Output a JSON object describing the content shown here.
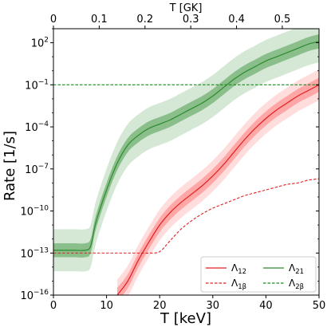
{
  "chart_data": {
    "type": "line",
    "xlabel": "T [keV]",
    "ylabel": "Rate [1/s]",
    "x2label": "T [GK]",
    "xlim": [
      0,
      50
    ],
    "ylim_log10": [
      -16,
      3
    ],
    "yscale": "log",
    "x_ticks": [
      0,
      10,
      20,
      30,
      40,
      50
    ],
    "x_tick_labels": [
      "0",
      "10",
      "20",
      "30",
      "40",
      "50"
    ],
    "x2_ticks_GK": [
      0,
      0.1,
      0.2,
      0.3,
      0.4,
      0.5
    ],
    "x2_tick_labels": [
      "0",
      "0.1",
      "0.2",
      "0.3",
      "0.4",
      "0.5"
    ],
    "y_ticks_log10": [
      2,
      -1,
      -4,
      -7,
      -10,
      -13,
      -16
    ],
    "y_tick_labels": [
      {
        "base": "10",
        "exp": "2"
      },
      {
        "base": "10",
        "exp": "−1"
      },
      {
        "base": "10",
        "exp": "−4"
      },
      {
        "base": "10",
        "exp": "−7"
      },
      {
        "base": "10",
        "exp": "−10"
      },
      {
        "base": "10",
        "exp": "−13"
      },
      {
        "base": "10",
        "exp": "−16"
      }
    ],
    "x": [
      0,
      2,
      4,
      6,
      7,
      8,
      10,
      12,
      14,
      16,
      18,
      20,
      22,
      24,
      26,
      28,
      30,
      32,
      34,
      36,
      38,
      40,
      42,
      44,
      46,
      48,
      50
    ],
    "series": [
      {
        "name": "Λ21",
        "legend_main": "Λ",
        "legend_sub": "21",
        "color": "#2e8b2e",
        "style": "solid",
        "log10_values": [
          -12.8,
          -12.8,
          -12.8,
          -12.8,
          -12.5,
          -10.8,
          -8.5,
          -6.6,
          -5.3,
          -4.6,
          -4.1,
          -3.8,
          -3.5,
          -3.1,
          -2.7,
          -2.3,
          -1.8,
          -1.2,
          -0.6,
          -0.1,
          0.3,
          0.7,
          1.0,
          1.3,
          1.6,
          1.9,
          2.1
        ],
        "band_inner": 0.5,
        "band_outer": 1.5
      },
      {
        "name": "Λ12",
        "legend_main": "Λ",
        "legend_sub": "12",
        "color": "#e02020",
        "style": "solid",
        "log10_values": [
          null,
          null,
          null,
          null,
          null,
          null,
          null,
          -16.0,
          -15.0,
          -13.5,
          -12.2,
          -11.0,
          -10.1,
          -9.4,
          -8.8,
          -8.2,
          -7.5,
          -6.7,
          -5.8,
          -4.9,
          -4.1,
          -3.4,
          -2.8,
          -2.3,
          -1.8,
          -1.4,
          -1.0
        ],
        "band_inner": 0.5,
        "band_outer": 1.1
      },
      {
        "name": "Λ1β",
        "legend_main": "Λ",
        "legend_sub": "1β",
        "color": "#e02020",
        "style": "dashed",
        "log10_values": [
          -13.0,
          -13.0,
          -13.0,
          -13.0,
          -13.0,
          -13.0,
          -13.0,
          -13.0,
          -13.0,
          -13.0,
          -13.0,
          -12.9,
          -12.1,
          -11.3,
          -10.7,
          -10.2,
          -9.8,
          -9.5,
          -9.2,
          -8.9,
          -8.7,
          -8.5,
          -8.3,
          -8.1,
          -8.0,
          -7.8,
          -7.7
        ]
      },
      {
        "name": "Λ2β",
        "legend_main": "Λ",
        "legend_sub": "2β",
        "color": "#1a8a1a",
        "style": "dashed",
        "log10_values": [
          -1.0,
          -1.0,
          -1.0,
          -1.0,
          -1.0,
          -1.0,
          -1.0,
          -1.0,
          -1.0,
          -1.0,
          -1.0,
          -1.0,
          -1.0,
          -1.0,
          -1.0,
          -1.0,
          -1.0,
          -1.0,
          -1.0,
          -1.0,
          -1.0,
          -1.0,
          -1.0,
          -1.0,
          -1.0,
          -1.0,
          -1.0
        ]
      }
    ],
    "legend": {
      "location": "lower right",
      "order": [
        "Λ12",
        "Λ21",
        "Λ1β",
        "Λ2β"
      ]
    }
  }
}
